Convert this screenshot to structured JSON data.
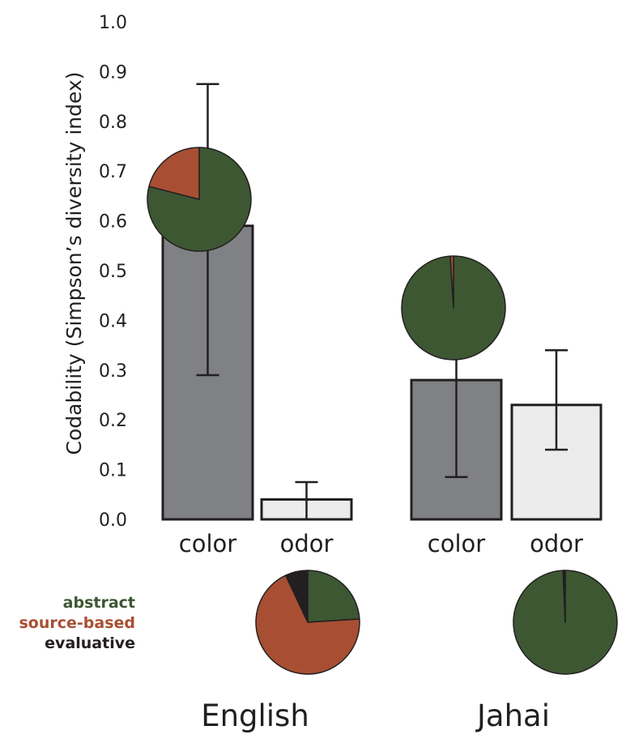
{
  "chart_data": {
    "type": "bar",
    "ylabel": "Codability (Simpson’s diversity index)",
    "ylim": [
      0,
      1.0
    ],
    "yticks": [
      "0.0",
      "0.1",
      "0.2",
      "0.3",
      "0.4",
      "0.5",
      "0.6",
      "0.7",
      "0.8",
      "0.9",
      "1.0"
    ],
    "grid": false,
    "groups": [
      {
        "name": "English",
        "bars": [
          {
            "label": "color",
            "value": 0.59,
            "err_low": 0.29,
            "err_high": 0.875,
            "fill": "#808184"
          },
          {
            "label": "odor",
            "value": 0.04,
            "err_low": 0.0,
            "err_high": 0.075,
            "fill": "#ececed"
          }
        ],
        "pies": [
          {
            "slices": [
              {
                "name": "abstract",
                "value": 0.79
              },
              {
                "name": "source-based",
                "value": 0.21
              },
              {
                "name": "evaluative",
                "value": 0.0
              }
            ]
          },
          {
            "slices": [
              {
                "name": "abstract",
                "value": 0.24
              },
              {
                "name": "source-based",
                "value": 0.69
              },
              {
                "name": "evaluative",
                "value": 0.07
              }
            ]
          }
        ]
      },
      {
        "name": "Jahai",
        "bars": [
          {
            "label": "color",
            "value": 0.28,
            "err_low": 0.085,
            "err_high": 0.455,
            "fill": "#808184"
          },
          {
            "label": "odor",
            "value": 0.23,
            "err_low": 0.14,
            "err_high": 0.34,
            "fill": "#ececed"
          }
        ],
        "pies": [
          {
            "slices": [
              {
                "name": "abstract",
                "value": 0.99
              },
              {
                "name": "source-based",
                "value": 0.01
              },
              {
                "name": "evaluative",
                "value": 0.0
              }
            ]
          },
          {
            "slices": [
              {
                "name": "abstract",
                "value": 0.993
              },
              {
                "name": "source-based",
                "value": 0.004
              },
              {
                "name": "evaluative",
                "value": 0.003
              }
            ]
          }
        ]
      }
    ],
    "legend": {
      "placement": "left",
      "entries": [
        {
          "label": "abstract",
          "color": "#3d5733"
        },
        {
          "label": "source-based",
          "color": "#a84f33"
        },
        {
          "label": "evaluative",
          "color": "#231f20"
        }
      ]
    }
  }
}
